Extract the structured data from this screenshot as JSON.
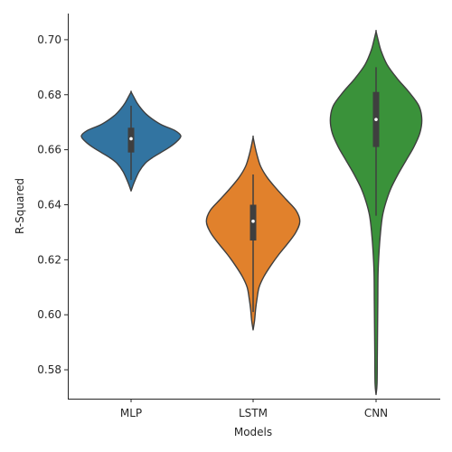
{
  "chart_data": {
    "type": "violin",
    "title": "",
    "xlabel": "Models",
    "ylabel": "R-Squared",
    "ylim": [
      0.5695,
      0.7095
    ],
    "yticks": [
      "0.58",
      "0.60",
      "0.62",
      "0.64",
      "0.66",
      "0.68",
      "0.70"
    ],
    "categories": [
      "MLP",
      "LSTM",
      "CNN"
    ],
    "grid": false,
    "legend": "none",
    "series": [
      {
        "color": "#3274a1",
        "min": 0.649,
        "q1": 0.659,
        "median": 0.664,
        "q3": 0.668,
        "max": 0.676,
        "profile": [
          [
            0.645,
            0
          ],
          [
            0.648,
            0.06
          ],
          [
            0.652,
            0.16
          ],
          [
            0.655,
            0.28
          ],
          [
            0.657,
            0.42
          ],
          [
            0.659,
            0.6
          ],
          [
            0.661,
            0.78
          ],
          [
            0.663,
            0.92
          ],
          [
            0.665,
            1.0
          ],
          [
            0.667,
            0.88
          ],
          [
            0.669,
            0.62
          ],
          [
            0.671,
            0.44
          ],
          [
            0.673,
            0.3
          ],
          [
            0.675,
            0.2
          ],
          [
            0.677,
            0.12
          ],
          [
            0.679,
            0.06
          ],
          [
            0.681,
            0
          ]
        ]
      },
      {
        "color": "#e1812c",
        "min": 0.601,
        "q1": 0.627,
        "median": 0.634,
        "q3": 0.64,
        "max": 0.651,
        "profile": [
          [
            0.5945,
            0
          ],
          [
            0.598,
            0.03
          ],
          [
            0.602,
            0.05
          ],
          [
            0.606,
            0.08
          ],
          [
            0.61,
            0.12
          ],
          [
            0.614,
            0.22
          ],
          [
            0.618,
            0.36
          ],
          [
            0.622,
            0.52
          ],
          [
            0.626,
            0.7
          ],
          [
            0.63,
            0.86
          ],
          [
            0.634,
            0.94
          ],
          [
            0.638,
            0.86
          ],
          [
            0.642,
            0.66
          ],
          [
            0.646,
            0.46
          ],
          [
            0.65,
            0.28
          ],
          [
            0.654,
            0.15
          ],
          [
            0.658,
            0.08
          ],
          [
            0.661,
            0.04
          ],
          [
            0.6645,
            0
          ]
        ]
      },
      {
        "color": "#3a923a",
        "min": 0.636,
        "q1": 0.661,
        "median": 0.671,
        "q3": 0.681,
        "max": 0.69,
        "profile": [
          [
            0.571,
            0
          ],
          [
            0.575,
            0.02
          ],
          [
            0.585,
            0.025
          ],
          [
            0.595,
            0.03
          ],
          [
            0.605,
            0.035
          ],
          [
            0.615,
            0.04
          ],
          [
            0.623,
            0.06
          ],
          [
            0.63,
            0.09
          ],
          [
            0.636,
            0.13
          ],
          [
            0.641,
            0.2
          ],
          [
            0.646,
            0.3
          ],
          [
            0.651,
            0.44
          ],
          [
            0.656,
            0.6
          ],
          [
            0.661,
            0.76
          ],
          [
            0.666,
            0.88
          ],
          [
            0.671,
            0.92
          ],
          [
            0.676,
            0.86
          ],
          [
            0.681,
            0.66
          ],
          [
            0.686,
            0.42
          ],
          [
            0.691,
            0.22
          ],
          [
            0.696,
            0.1
          ],
          [
            0.7,
            0.04
          ],
          [
            0.703,
            0
          ]
        ]
      }
    ]
  }
}
